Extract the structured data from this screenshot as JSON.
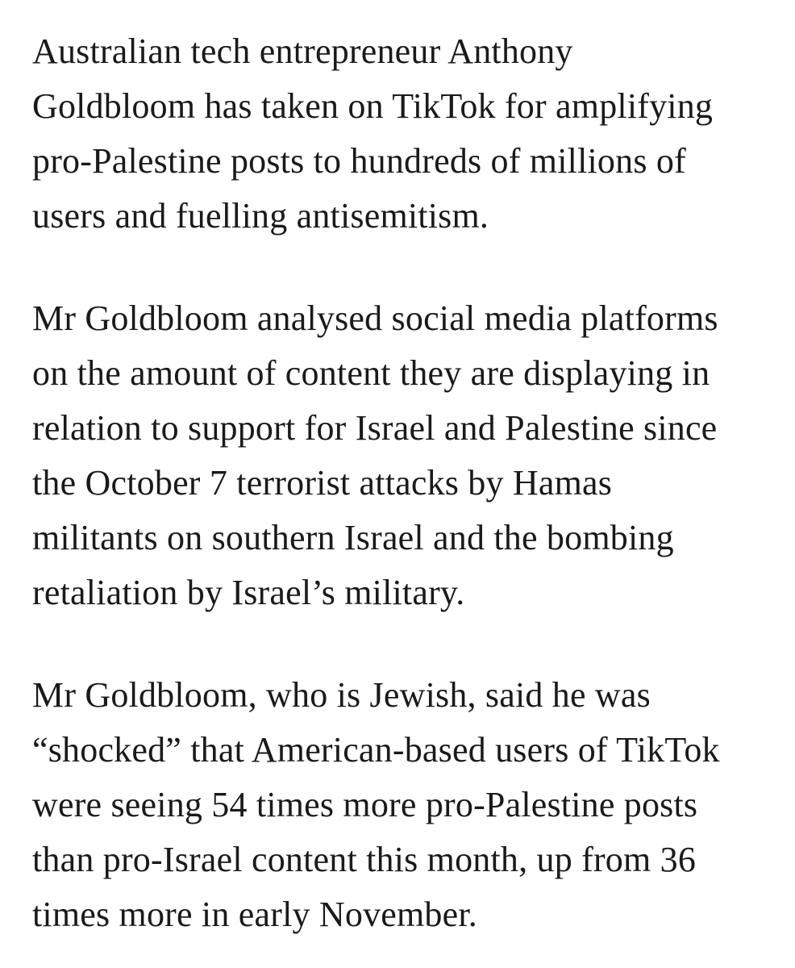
{
  "article": {
    "paragraphs": [
      {
        "lines": [
          "Australian tech entrepreneur Anthony",
          "Goldbloom has taken on TikTok for amplifying",
          "pro-Palestine posts to hundreds of millions of",
          "users and fuelling antisemitism."
        ]
      },
      {
        "lines": [
          "Mr Goldbloom analysed social media platforms",
          "on the amount of content they are displaying in",
          "relation to support for Israel and Palestine since",
          "the October 7 terrorist attacks by Hamas",
          "militants on southern Israel and the bombing",
          "retaliation by Israel’s military."
        ]
      },
      {
        "lines": [
          "Mr Goldbloom, who is Jewish, said he was",
          "“shocked” that American-based users of TikTok",
          "were seeing 54 times more pro-Palestine posts",
          "than pro-Israel content this month, up from 36",
          "times more in early November."
        ]
      }
    ]
  }
}
